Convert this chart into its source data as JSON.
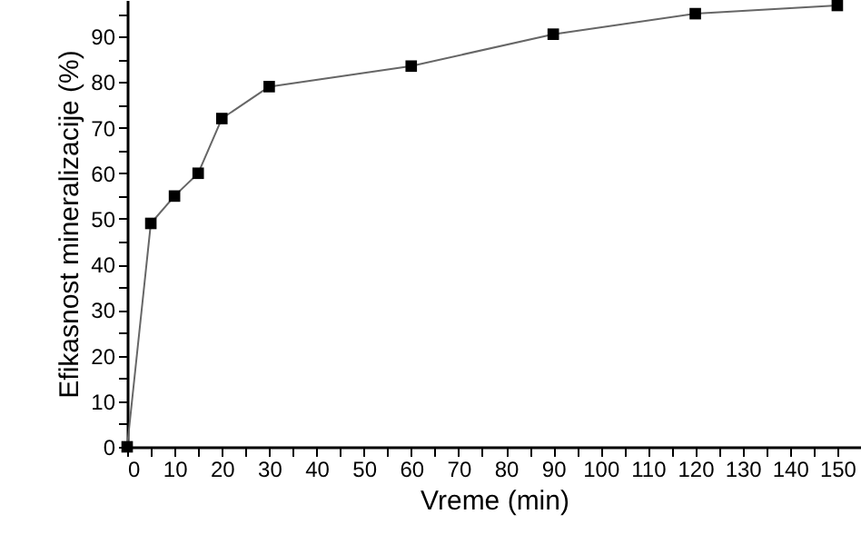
{
  "chart_data": {
    "type": "line",
    "xlabel": "Vreme (min)",
    "ylabel": "Efikasnost mineralizacije (%)",
    "x": [
      0,
      5,
      10,
      15,
      20,
      30,
      60,
      90,
      120,
      150
    ],
    "series": [
      {
        "color": "#000000",
        "values": [
          0,
          49,
          55,
          60,
          72,
          79,
          83.5,
          90.5,
          95,
          96.8
        ]
      }
    ],
    "xlim": [
      0,
      155
    ],
    "ylim": [
      0,
      98
    ],
    "xticks": [
      0,
      {
        "value": 5,
        "label": null
      },
      10,
      {
        "value": 15,
        "label": null
      },
      20,
      {
        "value": 25,
        "label": null
      },
      30,
      {
        "value": 35,
        "label": null
      },
      40,
      {
        "value": 45,
        "label": null
      },
      50,
      {
        "value": 55,
        "label": null
      },
      60,
      {
        "value": 65,
        "label": null
      },
      70,
      {
        "value": 75,
        "label": null
      },
      80,
      {
        "value": 85,
        "label": null
      },
      90,
      {
        "value": 95,
        "label": null
      },
      100,
      {
        "value": 105,
        "label": null
      },
      110,
      {
        "value": 115,
        "label": null
      },
      120,
      {
        "value": 125,
        "label": null
      },
      130,
      {
        "value": 135,
        "label": null
      },
      140,
      {
        "value": 145,
        "label": null
      },
      150
    ],
    "yticks": [
      0,
      {
        "value": 5,
        "label": null
      },
      10,
      {
        "value": 15,
        "label": null
      },
      20,
      {
        "value": 25,
        "label": null
      },
      30,
      {
        "value": 35,
        "label": null
      },
      40,
      {
        "value": 45,
        "label": null
      },
      50,
      {
        "value": 55,
        "label": null
      },
      60,
      {
        "value": 65,
        "label": null
      },
      70,
      {
        "value": 75,
        "label": null
      },
      80,
      {
        "value": 85,
        "label": null
      },
      90,
      {
        "value": 95,
        "label": null
      }
    ],
    "marker": "square",
    "line_style": "solid",
    "grid": false
  }
}
